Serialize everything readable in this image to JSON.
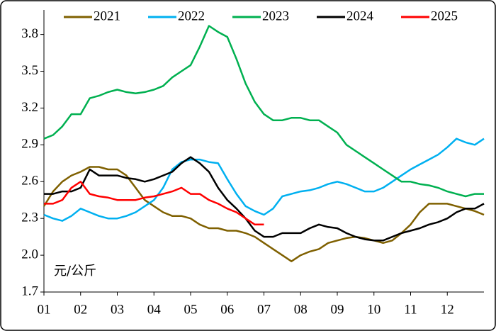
{
  "chart_data": {
    "type": "line",
    "annotation": "元/公斤",
    "x": [
      1,
      1.25,
      1.5,
      1.75,
      2,
      2.25,
      2.5,
      2.75,
      3,
      3.25,
      3.5,
      3.75,
      4,
      4.25,
      4.5,
      4.75,
      5,
      5.25,
      5.5,
      5.75,
      6,
      6.25,
      6.5,
      6.75,
      7,
      7.25,
      7.5,
      7.75,
      8,
      8.25,
      8.5,
      8.75,
      9,
      9.25,
      9.5,
      9.75,
      10,
      10.25,
      10.5,
      10.75,
      11,
      11.25,
      11.5,
      11.75,
      12,
      12.25,
      12.5,
      12.75,
      13
    ],
    "xlim": [
      1,
      13
    ],
    "xticks": [
      {
        "value": 1,
        "label": "01"
      },
      {
        "value": 2,
        "label": "02"
      },
      {
        "value": 3,
        "label": "03"
      },
      {
        "value": 4,
        "label": "04"
      },
      {
        "value": 5,
        "label": "05"
      },
      {
        "value": 6,
        "label": "06"
      },
      {
        "value": 7,
        "label": "07"
      },
      {
        "value": 8,
        "label": "08"
      },
      {
        "value": 9,
        "label": "09"
      },
      {
        "value": 10,
        "label": "10"
      },
      {
        "value": 11,
        "label": "11"
      },
      {
        "value": 12,
        "label": "12"
      }
    ],
    "ylim": [
      1.7,
      4.0
    ],
    "yticks": [
      1.7,
      {
        "value": 2.0,
        "label": "2.0"
      },
      2.3,
      2.6,
      2.9,
      3.2,
      3.5,
      3.8
    ],
    "grid": false,
    "legend": "top",
    "series": [
      {
        "name": "2021",
        "color": "#7f6000",
        "values": [
          2.4,
          2.52,
          2.6,
          2.65,
          2.68,
          2.72,
          2.72,
          2.7,
          2.7,
          2.65,
          2.55,
          2.45,
          2.4,
          2.35,
          2.32,
          2.32,
          2.3,
          2.25,
          2.22,
          2.22,
          2.2,
          2.2,
          2.18,
          2.15,
          2.1,
          2.05,
          2.0,
          1.95,
          2.0,
          2.03,
          2.05,
          2.1,
          2.12,
          2.14,
          2.15,
          2.14,
          2.12,
          2.1,
          2.12,
          2.18,
          2.25,
          2.35,
          2.42,
          2.42,
          2.42,
          2.4,
          2.38,
          2.36,
          2.33
        ]
      },
      {
        "name": "2022",
        "color": "#00b0f0",
        "values": [
          2.33,
          2.3,
          2.28,
          2.32,
          2.38,
          2.35,
          2.32,
          2.3,
          2.3,
          2.32,
          2.35,
          2.4,
          2.45,
          2.55,
          2.7,
          2.76,
          2.78,
          2.78,
          2.76,
          2.75,
          2.62,
          2.5,
          2.4,
          2.36,
          2.33,
          2.38,
          2.48,
          2.5,
          2.52,
          2.53,
          2.55,
          2.58,
          2.6,
          2.58,
          2.55,
          2.52,
          2.52,
          2.55,
          2.6,
          2.65,
          2.7,
          2.74,
          2.78,
          2.82,
          2.88,
          2.95,
          2.92,
          2.9,
          2.95
        ]
      },
      {
        "name": "2023",
        "color": "#00b050",
        "values": [
          2.95,
          2.98,
          3.05,
          3.15,
          3.15,
          3.28,
          3.3,
          3.33,
          3.35,
          3.33,
          3.32,
          3.33,
          3.35,
          3.38,
          3.45,
          3.5,
          3.55,
          3.7,
          3.87,
          3.82,
          3.78,
          3.6,
          3.4,
          3.25,
          3.15,
          3.1,
          3.1,
          3.12,
          3.12,
          3.1,
          3.1,
          3.05,
          3.0,
          2.9,
          2.85,
          2.8,
          2.75,
          2.7,
          2.65,
          2.6,
          2.6,
          2.58,
          2.57,
          2.55,
          2.52,
          2.5,
          2.48,
          2.5,
          2.5
        ]
      },
      {
        "name": "2024",
        "color": "#000000",
        "values": [
          2.5,
          2.5,
          2.52,
          2.52,
          2.55,
          2.7,
          2.65,
          2.65,
          2.65,
          2.63,
          2.62,
          2.6,
          2.62,
          2.65,
          2.68,
          2.75,
          2.8,
          2.75,
          2.68,
          2.55,
          2.45,
          2.38,
          2.3,
          2.2,
          2.15,
          2.15,
          2.18,
          2.18,
          2.18,
          2.22,
          2.25,
          2.23,
          2.22,
          2.18,
          2.15,
          2.13,
          2.12,
          2.12,
          2.15,
          2.18,
          2.2,
          2.22,
          2.25,
          2.27,
          2.3,
          2.35,
          2.38,
          2.38,
          2.42
        ]
      },
      {
        "name": "2025",
        "color": "#ff0000",
        "values": [
          2.42,
          2.42,
          2.45,
          2.55,
          2.6,
          2.5,
          2.48,
          2.47,
          2.45,
          2.45,
          2.45,
          2.47,
          2.48,
          2.5,
          2.52,
          2.55,
          2.5,
          2.5,
          2.45,
          2.42,
          2.38,
          2.35,
          2.3,
          2.25,
          2.25,
          null,
          null,
          null,
          null,
          null,
          null,
          null,
          null,
          null,
          null,
          null,
          null,
          null,
          null,
          null,
          null,
          null,
          null,
          null,
          null,
          null,
          null,
          null,
          null
        ]
      }
    ]
  }
}
